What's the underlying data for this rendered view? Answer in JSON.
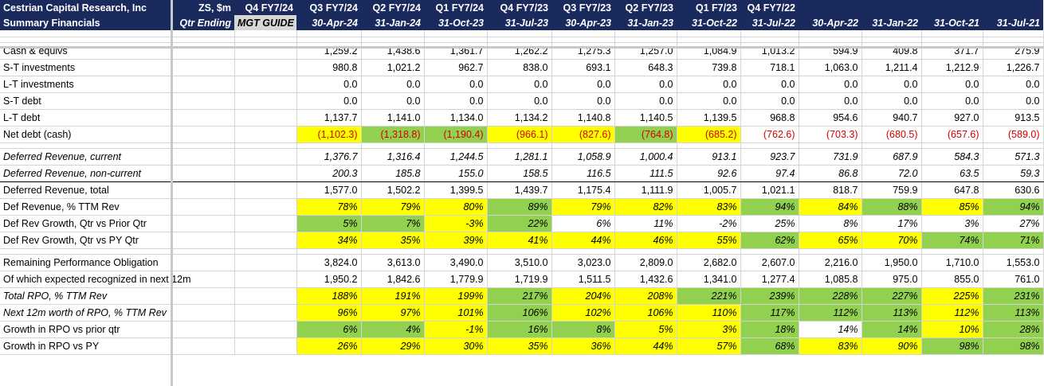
{
  "header": {
    "company": "Cestrian Capital Research, Inc",
    "subtitle": "Summary Financials",
    "ticker": "ZS, $m",
    "qtr_ending": "Qtr Ending",
    "guide_title": "Q4 FY7/24",
    "guide_sub": "MGT GUIDE",
    "periods": [
      "Q3 FY7/24",
      "Q2 FY7/24",
      "Q1 FY7/24",
      "Q4 FY7/23",
      "Q3 FY7/23",
      "Q2 FY7/23",
      "Q1 F7/23",
      "Q4 FY7/22",
      "",
      "",
      "",
      ""
    ],
    "dates": [
      "30-Apr-24",
      "31-Jan-24",
      "31-Oct-23",
      "31-Jul-23",
      "30-Apr-23",
      "31-Jan-23",
      "31-Oct-22",
      "31-Jul-22",
      "30-Apr-22",
      "31-Jan-22",
      "31-Oct-21",
      "31-Jul-21"
    ]
  },
  "rows": [
    {
      "label": "Cash & equivs",
      "values": [
        "1,259.2",
        "1,438.6",
        "1,361.7",
        "1,262.2",
        "1,275.3",
        "1,257.0",
        "1,084.9",
        "1,013.2",
        "594.9",
        "409.8",
        "371.7",
        "275.9"
      ]
    },
    {
      "label": "S-T investments",
      "values": [
        "980.8",
        "1,021.2",
        "962.7",
        "838.0",
        "693.1",
        "648.3",
        "739.8",
        "718.1",
        "1,063.0",
        "1,211.4",
        "1,212.9",
        "1,226.7"
      ]
    },
    {
      "label": "L-T investments",
      "values": [
        "0.0",
        "0.0",
        "0.0",
        "0.0",
        "0.0",
        "0.0",
        "0.0",
        "0.0",
        "0.0",
        "0.0",
        "0.0",
        "0.0"
      ]
    },
    {
      "label": "S-T debt",
      "values": [
        "0.0",
        "0.0",
        "0.0",
        "0.0",
        "0.0",
        "0.0",
        "0.0",
        "0.0",
        "0.0",
        "0.0",
        "0.0",
        "0.0"
      ]
    },
    {
      "label": "L-T debt",
      "values": [
        "1,137.7",
        "1,141.0",
        "1,134.0",
        "1,134.2",
        "1,140.8",
        "1,140.5",
        "1,139.5",
        "968.8",
        "954.6",
        "940.7",
        "927.0",
        "913.5"
      ]
    },
    {
      "label": "Net debt (cash)",
      "neg": true,
      "values": [
        "(1,102.3)",
        "(1,318.8)",
        "(1,190.4)",
        "(966.1)",
        "(827.6)",
        "(764.8)",
        "(685.2)",
        "(762.6)",
        "(703.3)",
        "(680.5)",
        "(657.6)",
        "(589.0)"
      ],
      "fills": [
        "y",
        "g",
        "g",
        "y",
        "y",
        "g",
        "y",
        "",
        "",
        "",
        "",
        ""
      ]
    },
    {
      "label": "Deferred Revenue, current",
      "italic": true,
      "values": [
        "1,376.7",
        "1,316.4",
        "1,244.5",
        "1,281.1",
        "1,058.9",
        "1,000.4",
        "913.1",
        "923.7",
        "731.9",
        "687.9",
        "584.3",
        "571.3"
      ]
    },
    {
      "label": "Deferred Revenue, non-current",
      "italic": true,
      "values": [
        "200.3",
        "185.8",
        "155.0",
        "158.5",
        "116.5",
        "111.5",
        "92.6",
        "97.4",
        "86.8",
        "72.0",
        "63.5",
        "59.3"
      ]
    },
    {
      "label": "Deferred Revenue, total",
      "values": [
        "1,577.0",
        "1,502.2",
        "1,399.5",
        "1,439.7",
        "1,175.4",
        "1,111.9",
        "1,005.7",
        "1,021.1",
        "818.7",
        "759.9",
        "647.8",
        "630.6"
      ]
    },
    {
      "label": "Def Revenue, % TTM Rev",
      "valitalic": true,
      "values": [
        "78%",
        "79%",
        "80%",
        "89%",
        "79%",
        "82%",
        "83%",
        "94%",
        "84%",
        "88%",
        "85%",
        "94%"
      ],
      "fills": [
        "y",
        "y",
        "y",
        "g",
        "y",
        "y",
        "y",
        "g",
        "y",
        "g",
        "y",
        "g"
      ]
    },
    {
      "label": "Def Rev Growth, Qtr vs Prior Qtr",
      "valitalic": true,
      "values": [
        "5%",
        "7%",
        "-3%",
        "22%",
        "6%",
        "11%",
        "-2%",
        "25%",
        "8%",
        "17%",
        "3%",
        "27%"
      ],
      "fills": [
        "g",
        "g",
        "y",
        "g",
        "",
        "",
        "",
        "",
        "",
        "",
        "",
        ""
      ]
    },
    {
      "label": "Def Rev Growth, Qtr vs PY Qtr",
      "valitalic": true,
      "values": [
        "34%",
        "35%",
        "39%",
        "41%",
        "44%",
        "46%",
        "55%",
        "62%",
        "65%",
        "70%",
        "74%",
        "71%"
      ],
      "fills": [
        "y",
        "y",
        "y",
        "y",
        "y",
        "y",
        "y",
        "g",
        "y",
        "y",
        "g",
        "g"
      ]
    },
    {
      "label": "Remaining Performance Obligation",
      "values": [
        "3,824.0",
        "3,613.0",
        "3,490.0",
        "3,510.0",
        "3,023.0",
        "2,809.0",
        "2,682.0",
        "2,607.0",
        "2,216.0",
        "1,950.0",
        "1,710.0",
        "1,553.0"
      ]
    },
    {
      "label": "Of which expected recognized in next 12m",
      "values": [
        "1,950.2",
        "1,842.6",
        "1,779.9",
        "1,719.9",
        "1,511.5",
        "1,432.6",
        "1,341.0",
        "1,277.4",
        "1,085.8",
        "975.0",
        "855.0",
        "761.0"
      ]
    },
    {
      "label": "Total RPO, % TTM Rev",
      "italic": true,
      "valitalic": true,
      "values": [
        "188%",
        "191%",
        "199%",
        "217%",
        "204%",
        "208%",
        "221%",
        "239%",
        "228%",
        "227%",
        "225%",
        "231%"
      ],
      "fills": [
        "y",
        "y",
        "y",
        "g",
        "y",
        "y",
        "g",
        "g",
        "g",
        "g",
        "y",
        "g"
      ]
    },
    {
      "label": "Next 12m worth of RPO, % TTM Rev",
      "italic": true,
      "valitalic": true,
      "values": [
        "96%",
        "97%",
        "101%",
        "106%",
        "102%",
        "106%",
        "110%",
        "117%",
        "112%",
        "113%",
        "112%",
        "113%"
      ],
      "fills": [
        "y",
        "y",
        "y",
        "g",
        "y",
        "y",
        "y",
        "g",
        "g",
        "g",
        "y",
        "g"
      ]
    },
    {
      "label": "Growth in RPO vs prior qtr",
      "valitalic": true,
      "values": [
        "6%",
        "4%",
        "-1%",
        "16%",
        "8%",
        "5%",
        "3%",
        "18%",
        "14%",
        "14%",
        "10%",
        "28%"
      ],
      "fills": [
        "g",
        "g",
        "y",
        "g",
        "g",
        "y",
        "y",
        "g",
        "",
        "g",
        "y",
        "g"
      ]
    },
    {
      "label": "Growth in RPO vs PY",
      "valitalic": true,
      "values": [
        "26%",
        "29%",
        "30%",
        "35%",
        "36%",
        "44%",
        "57%",
        "68%",
        "83%",
        "90%",
        "98%",
        "98%"
      ],
      "fills": [
        "y",
        "y",
        "y",
        "y",
        "y",
        "y",
        "y",
        "g",
        "y",
        "y",
        "g",
        "g"
      ]
    }
  ]
}
